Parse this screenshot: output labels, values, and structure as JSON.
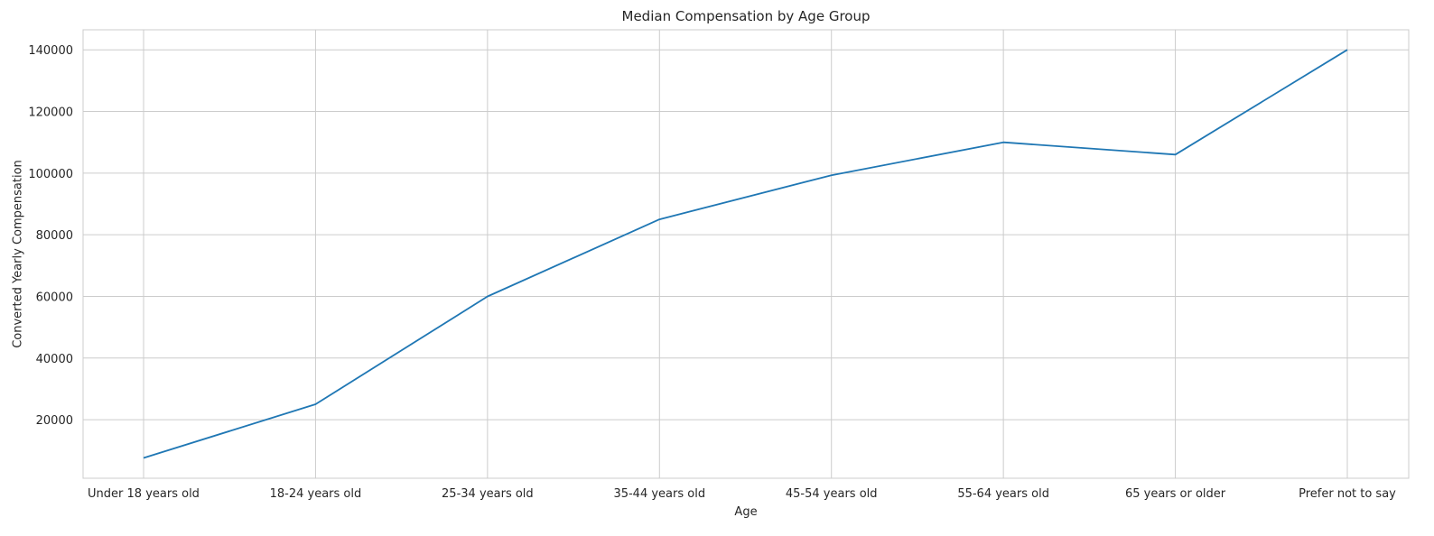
{
  "chart_data": {
    "type": "line",
    "title": "Median Compensation by Age Group",
    "xlabel": "Age",
    "ylabel": "Converted Yearly Compensation",
    "categories": [
      "Under 18 years old",
      "18-24 years old",
      "25-34 years old",
      "35-44 years old",
      "45-54 years old",
      "55-64 years old",
      "65 years or older",
      "Prefer not to say"
    ],
    "series": [
      {
        "values": [
          7600,
          25000,
          60000,
          85000,
          99300,
          110000,
          106000,
          140000
        ],
        "color": "#1f77b4"
      }
    ],
    "yticks": [
      20000,
      40000,
      60000,
      80000,
      100000,
      120000,
      140000
    ],
    "ylim": [
      1000,
      146500
    ],
    "grid": true,
    "legend": "none"
  }
}
